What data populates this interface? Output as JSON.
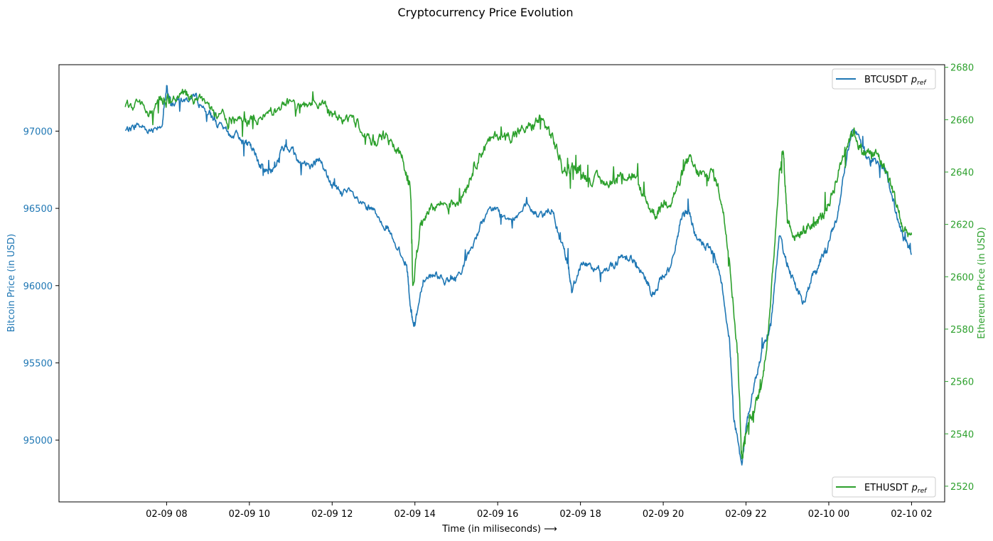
{
  "chart_data": {
    "type": "line",
    "title": "Cryptocurrency Price Evolution",
    "xlabel": "Time (in miliseconds) ⟶",
    "ylabel_left": "Bitcoin Price (in USD)",
    "ylabel_right": "Ethereum Price (in USD)",
    "x_hours_range": [
      5.4,
      26.8
    ],
    "x_ticks": [
      {
        "hour": 8,
        "label": "02-09 08"
      },
      {
        "hour": 10,
        "label": "02-09 10"
      },
      {
        "hour": 12,
        "label": "02-09 12"
      },
      {
        "hour": 14,
        "label": "02-09 14"
      },
      {
        "hour": 16,
        "label": "02-09 16"
      },
      {
        "hour": 18,
        "label": "02-09 18"
      },
      {
        "hour": 20,
        "label": "02-09 20"
      },
      {
        "hour": 22,
        "label": "02-09 22"
      },
      {
        "hour": 24,
        "label": "02-10 00"
      },
      {
        "hour": 26,
        "label": "02-10 02"
      }
    ],
    "y_left_range": [
      94600,
      97430
    ],
    "y_left_ticks": [
      95000,
      95500,
      96000,
      96500,
      97000
    ],
    "y_right_range": [
      2514,
      2681
    ],
    "y_right_ticks": [
      2520,
      2540,
      2560,
      2580,
      2600,
      2620,
      2640,
      2660,
      2680
    ],
    "left_color": "#1f77b4",
    "right_color": "#2ca02c",
    "series": [
      {
        "name": "BTCUSDT",
        "legend_label": "BTCUSDT",
        "legend_sub": "ref",
        "legend_pos": "upper right",
        "axis": "left",
        "color": "#1f77b4",
        "points": [
          [
            7.0,
            97000
          ],
          [
            7.3,
            97040
          ],
          [
            7.6,
            97010
          ],
          [
            7.9,
            97060
          ],
          [
            8.0,
            97280
          ],
          [
            8.1,
            97180
          ],
          [
            8.4,
            97200
          ],
          [
            8.7,
            97220
          ],
          [
            9.0,
            97120
          ],
          [
            9.2,
            97050
          ],
          [
            9.5,
            96980
          ],
          [
            9.8,
            96960
          ],
          [
            10.0,
            96900
          ],
          [
            10.2,
            96820
          ],
          [
            10.4,
            96740
          ],
          [
            10.6,
            96760
          ],
          [
            10.8,
            96880
          ],
          [
            11.0,
            96900
          ],
          [
            11.2,
            96800
          ],
          [
            11.5,
            96780
          ],
          [
            11.7,
            96820
          ],
          [
            12.0,
            96640
          ],
          [
            12.2,
            96620
          ],
          [
            12.5,
            96580
          ],
          [
            12.8,
            96500
          ],
          [
            13.0,
            96480
          ],
          [
            13.3,
            96400
          ],
          [
            13.5,
            96260
          ],
          [
            13.8,
            96150
          ],
          [
            13.9,
            95820
          ],
          [
            14.0,
            95750
          ],
          [
            14.2,
            96050
          ],
          [
            14.5,
            96080
          ],
          [
            14.8,
            96020
          ],
          [
            15.0,
            96050
          ],
          [
            15.3,
            96200
          ],
          [
            15.6,
            96400
          ],
          [
            15.9,
            96500
          ],
          [
            16.1,
            96450
          ],
          [
            16.4,
            96450
          ],
          [
            16.7,
            96500
          ],
          [
            17.0,
            96450
          ],
          [
            17.3,
            96500
          ],
          [
            17.5,
            96300
          ],
          [
            17.7,
            96150
          ],
          [
            17.8,
            95960
          ],
          [
            18.0,
            96140
          ],
          [
            18.2,
            96130
          ],
          [
            18.5,
            96100
          ],
          [
            18.8,
            96130
          ],
          [
            19.0,
            96180
          ],
          [
            19.2,
            96200
          ],
          [
            19.4,
            96100
          ],
          [
            19.6,
            96020
          ],
          [
            19.8,
            95940
          ],
          [
            20.0,
            96080
          ],
          [
            20.2,
            96120
          ],
          [
            20.4,
            96400
          ],
          [
            20.6,
            96500
          ],
          [
            20.8,
            96300
          ],
          [
            21.0,
            96260
          ],
          [
            21.2,
            96200
          ],
          [
            21.4,
            96050
          ],
          [
            21.6,
            95650
          ],
          [
            21.7,
            95180
          ],
          [
            21.9,
            94820
          ],
          [
            22.0,
            95100
          ],
          [
            22.2,
            95350
          ],
          [
            22.4,
            95600
          ],
          [
            22.6,
            95750
          ],
          [
            22.8,
            96300
          ],
          [
            23.0,
            96150
          ],
          [
            23.2,
            96000
          ],
          [
            23.4,
            95880
          ],
          [
            23.6,
            96060
          ],
          [
            23.8,
            96150
          ],
          [
            24.0,
            96280
          ],
          [
            24.2,
            96450
          ],
          [
            24.4,
            96800
          ],
          [
            24.6,
            97050
          ],
          [
            24.8,
            96900
          ],
          [
            25.0,
            96780
          ],
          [
            25.2,
            96800
          ],
          [
            25.4,
            96720
          ],
          [
            25.6,
            96500
          ],
          [
            25.8,
            96300
          ],
          [
            26.0,
            96200
          ]
        ]
      },
      {
        "name": "ETHUSDT",
        "legend_label": "ETHUSDT",
        "legend_sub": "ref",
        "legend_pos": "lower right",
        "axis": "right",
        "color": "#2ca02c",
        "points": [
          [
            7.0,
            2664
          ],
          [
            7.3,
            2666
          ],
          [
            7.6,
            2663
          ],
          [
            7.9,
            2667
          ],
          [
            8.1,
            2668
          ],
          [
            8.4,
            2670
          ],
          [
            8.7,
            2667
          ],
          [
            9.0,
            2666
          ],
          [
            9.2,
            2662
          ],
          [
            9.5,
            2660
          ],
          [
            9.8,
            2659
          ],
          [
            10.0,
            2660
          ],
          [
            10.3,
            2661
          ],
          [
            10.6,
            2663
          ],
          [
            10.9,
            2666
          ],
          [
            11.2,
            2664
          ],
          [
            11.5,
            2665
          ],
          [
            11.8,
            2665
          ],
          [
            12.0,
            2661
          ],
          [
            12.3,
            2661
          ],
          [
            12.6,
            2659
          ],
          [
            12.9,
            2654
          ],
          [
            13.1,
            2652
          ],
          [
            13.3,
            2654
          ],
          [
            13.6,
            2648
          ],
          [
            13.8,
            2641
          ],
          [
            13.9,
            2632
          ],
          [
            13.95,
            2596
          ],
          [
            14.1,
            2617
          ],
          [
            14.3,
            2626
          ],
          [
            14.6,
            2628
          ],
          [
            14.9,
            2628
          ],
          [
            15.1,
            2630
          ],
          [
            15.3,
            2637
          ],
          [
            15.5,
            2645
          ],
          [
            15.7,
            2650
          ],
          [
            16.0,
            2654
          ],
          [
            16.3,
            2654
          ],
          [
            16.5,
            2655
          ],
          [
            16.8,
            2657
          ],
          [
            17.0,
            2660
          ],
          [
            17.2,
            2657
          ],
          [
            17.4,
            2650
          ],
          [
            17.6,
            2640
          ],
          [
            17.8,
            2642
          ],
          [
            18.0,
            2640
          ],
          [
            18.2,
            2638
          ],
          [
            18.5,
            2636
          ],
          [
            18.8,
            2637
          ],
          [
            19.1,
            2639
          ],
          [
            19.3,
            2638
          ],
          [
            19.6,
            2628
          ],
          [
            19.8,
            2624
          ],
          [
            20.0,
            2628
          ],
          [
            20.2,
            2630
          ],
          [
            20.4,
            2636
          ],
          [
            20.6,
            2645
          ],
          [
            20.8,
            2640
          ],
          [
            21.0,
            2638
          ],
          [
            21.2,
            2640
          ],
          [
            21.4,
            2630
          ],
          [
            21.6,
            2608
          ],
          [
            21.8,
            2570
          ],
          [
            21.9,
            2530
          ],
          [
            22.0,
            2542
          ],
          [
            22.2,
            2548
          ],
          [
            22.4,
            2560
          ],
          [
            22.6,
            2590
          ],
          [
            22.8,
            2640
          ],
          [
            22.9,
            2648
          ],
          [
            23.0,
            2622
          ],
          [
            23.2,
            2615
          ],
          [
            23.4,
            2618
          ],
          [
            23.6,
            2620
          ],
          [
            23.8,
            2622
          ],
          [
            24.0,
            2628
          ],
          [
            24.2,
            2638
          ],
          [
            24.4,
            2650
          ],
          [
            24.6,
            2656
          ],
          [
            24.8,
            2648
          ],
          [
            25.0,
            2647
          ],
          [
            25.2,
            2646
          ],
          [
            25.4,
            2640
          ],
          [
            25.6,
            2630
          ],
          [
            25.8,
            2618
          ],
          [
            26.0,
            2616
          ]
        ]
      }
    ]
  }
}
